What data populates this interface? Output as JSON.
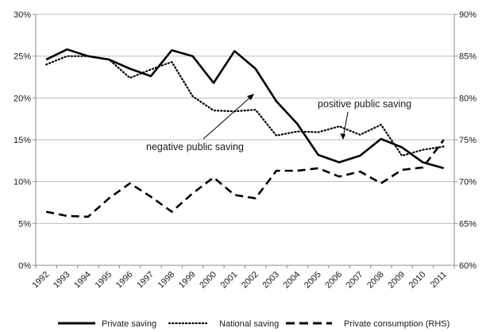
{
  "chart_data": {
    "type": "line",
    "x": [
      "1992",
      "1993",
      "1994",
      "1995",
      "1996",
      "1997",
      "1998",
      "1999",
      "2000",
      "2001",
      "2002",
      "2003",
      "2004",
      "2005",
      "2006",
      "2007",
      "2008",
      "2009",
      "2010",
      "2011"
    ],
    "xtick_labels": [
      "1992",
      "1993",
      "1994",
      "1995",
      "1996",
      "1997",
      "1998",
      "1999",
      "2000",
      "2001",
      "2002",
      "2003",
      "2004",
      "2005",
      "2006",
      "2007",
      "2008",
      "2009",
      "2010",
      "2011"
    ],
    "ylim_left": [
      0,
      30
    ],
    "yticks_left": [
      0,
      5,
      10,
      15,
      20,
      25,
      30
    ],
    "ytick_labels_left": [
      "0%",
      "5%",
      "10%",
      "15%",
      "20%",
      "25%",
      "30%"
    ],
    "ylim_right": [
      60,
      90
    ],
    "yticks_right": [
      60,
      65,
      70,
      75,
      80,
      85,
      90
    ],
    "ytick_labels_right": [
      "60%",
      "65%",
      "70%",
      "75%",
      "80%",
      "85%",
      "90%"
    ],
    "grid": "horizontal",
    "legend_position": "bottom",
    "series": [
      {
        "name": "Private saving",
        "axis": "left",
        "style": "solid",
        "values": [
          24.6,
          25.8,
          25.0,
          24.6,
          23.5,
          22.6,
          25.7,
          25.0,
          21.8,
          25.6,
          23.5,
          19.6,
          16.9,
          13.2,
          12.3,
          13.1,
          15.1,
          14.1,
          12.3,
          11.6
        ]
      },
      {
        "name": "National saving",
        "axis": "left",
        "style": "dotted",
        "values": [
          24.0,
          25.0,
          25.0,
          24.6,
          22.4,
          23.4,
          24.3,
          20.2,
          18.5,
          18.4,
          18.6,
          15.5,
          16.0,
          15.9,
          16.6,
          15.6,
          16.8,
          13.1,
          13.8,
          14.2
        ]
      },
      {
        "name": "Private consumption (RHS)",
        "axis": "right",
        "style": "dashed",
        "values": [
          66.4,
          65.9,
          65.8,
          68.0,
          69.8,
          68.2,
          66.4,
          68.6,
          70.5,
          68.4,
          68.0,
          71.3,
          71.3,
          71.6,
          70.6,
          71.2,
          69.8,
          71.4,
          71.7,
          75.0
        ]
      }
    ],
    "annotations": [
      {
        "text": "positive public saving"
      },
      {
        "text": "negative public saving"
      }
    ]
  },
  "colors": {
    "line": "#000000",
    "grid": "#bdbdbd",
    "axis": "#8c8c8c"
  }
}
